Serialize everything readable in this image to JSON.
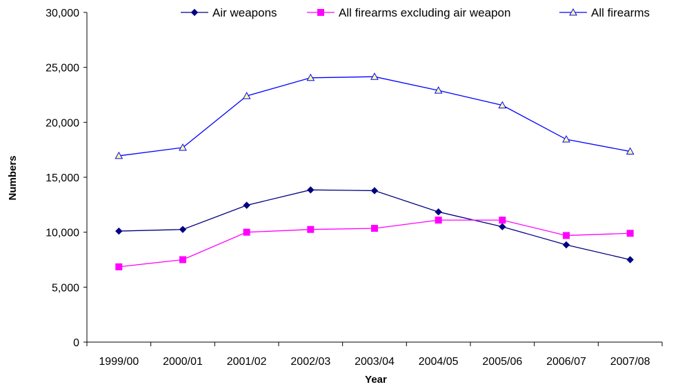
{
  "chart_data": {
    "type": "line",
    "title": "",
    "xlabel": "Year",
    "ylabel": "Numbers",
    "categories": [
      "1999/00",
      "2000/01",
      "2001/02",
      "2002/03",
      "2003/04",
      "2004/05",
      "2005/06",
      "2006/07",
      "2007/08"
    ],
    "ylim": [
      0,
      30000
    ],
    "yticks": [
      0,
      5000,
      10000,
      15000,
      20000,
      25000,
      30000
    ],
    "ytick_labels": [
      "0",
      "5,000",
      "10,000",
      "15,000",
      "20,000",
      "25,000",
      "30,000"
    ],
    "grid": false,
    "legend_position": "top-right",
    "series": [
      {
        "name": "Air weapons",
        "color": "#000080",
        "marker": "diamond",
        "values": [
          10100,
          10250,
          12450,
          13850,
          13780,
          11850,
          10500,
          8850,
          7500
        ]
      },
      {
        "name": "All firearms excluding air weapon",
        "color": "#ff00ff",
        "marker": "square",
        "values": [
          6850,
          7500,
          10000,
          10250,
          10350,
          11100,
          11100,
          9700,
          9900
        ]
      },
      {
        "name": "All firearms",
        "color": "#0000ff",
        "marker": "triangle",
        "values": [
          16950,
          17700,
          22400,
          24050,
          24150,
          22900,
          21550,
          18450,
          17350
        ]
      }
    ]
  }
}
